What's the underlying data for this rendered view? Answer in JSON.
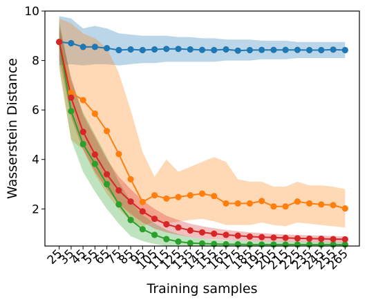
{
  "chart_data": {
    "type": "line",
    "xlabel": "Training samples",
    "ylabel": "Wasserstein Distance",
    "ylim": [
      0.5,
      10
    ],
    "y_ticks": [
      2,
      4,
      6,
      8,
      10
    ],
    "x": [
      25,
      35,
      45,
      55,
      65,
      75,
      85,
      95,
      105,
      115,
      125,
      135,
      145,
      155,
      165,
      175,
      185,
      195,
      205,
      215,
      225,
      235,
      245,
      255,
      265
    ],
    "grid": false,
    "legend": "none",
    "series": [
      {
        "color": "#1f77b4",
        "band_color": "#1f77b4",
        "values": [
          8.75,
          8.7,
          8.55,
          8.55,
          8.5,
          8.42,
          8.45,
          8.42,
          8.45,
          8.47,
          8.47,
          8.45,
          8.43,
          8.42,
          8.45,
          8.4,
          8.42,
          8.43,
          8.43,
          8.43,
          8.43,
          8.42,
          8.42,
          8.44,
          8.42
        ],
        "upper": [
          9.8,
          9.7,
          9.3,
          9.4,
          9.3,
          9.1,
          9.05,
          9.0,
          9.0,
          9.0,
          8.95,
          8.95,
          8.9,
          8.9,
          8.85,
          8.85,
          8.85,
          8.8,
          8.8,
          8.8,
          8.75,
          8.75,
          8.75,
          8.75,
          8.75
        ],
        "lower": [
          7.8,
          7.85,
          7.8,
          7.85,
          7.85,
          7.8,
          7.85,
          7.9,
          7.9,
          7.95,
          7.95,
          7.95,
          7.95,
          7.95,
          8.0,
          8.0,
          8.0,
          8.05,
          8.05,
          8.05,
          8.1,
          8.1,
          8.1,
          8.1,
          8.1
        ]
      },
      {
        "color": "#ff7f0e",
        "band_color": "#ff7f0e",
        "values": [
          8.75,
          6.7,
          6.4,
          5.85,
          5.15,
          4.22,
          3.2,
          2.28,
          2.55,
          2.42,
          2.48,
          2.55,
          2.62,
          2.52,
          2.22,
          2.22,
          2.22,
          2.32,
          2.1,
          2.1,
          2.3,
          2.22,
          2.18,
          2.15,
          2.02
        ],
        "upper": [
          9.7,
          9.5,
          9.1,
          8.9,
          8.5,
          7.5,
          6.0,
          4.3,
          3.3,
          4.0,
          3.5,
          3.7,
          3.9,
          4.1,
          3.9,
          3.2,
          3.1,
          3.1,
          2.9,
          2.9,
          3.1,
          2.95,
          2.95,
          2.9,
          2.8
        ],
        "lower": [
          7.6,
          4.8,
          4.4,
          3.4,
          2.6,
          2.0,
          1.5,
          1.3,
          1.5,
          1.4,
          1.5,
          1.55,
          1.6,
          1.5,
          1.35,
          1.35,
          1.35,
          1.45,
          1.35,
          1.3,
          1.45,
          1.4,
          1.35,
          1.3,
          1.25
        ]
      },
      {
        "color": "#2ca02c",
        "band_color": "#2ca02c",
        "values": [
          8.75,
          5.95,
          4.62,
          3.82,
          3.0,
          2.18,
          1.55,
          1.18,
          0.95,
          0.78,
          0.68,
          0.62,
          0.6,
          0.58,
          0.57,
          0.57,
          0.56,
          0.56,
          0.56,
          0.56,
          0.56,
          0.56,
          0.56,
          0.56,
          0.56
        ],
        "upper": [
          9.6,
          7.2,
          5.9,
          5.0,
          4.1,
          3.1,
          2.3,
          1.75,
          1.42,
          1.15,
          0.98,
          0.86,
          0.8,
          0.76,
          0.73,
          0.72,
          0.7,
          0.69,
          0.68,
          0.68,
          0.67,
          0.67,
          0.66,
          0.66,
          0.66
        ],
        "lower": [
          7.8,
          4.8,
          3.5,
          2.7,
          2.0,
          1.4,
          0.9,
          0.7,
          0.58,
          0.5,
          0.47,
          0.45,
          0.45,
          0.45,
          0.45,
          0.45,
          0.45,
          0.45,
          0.45,
          0.45,
          0.45,
          0.45,
          0.45,
          0.45,
          0.45
        ]
      },
      {
        "color": "#d62728",
        "band_color": "#d62728",
        "values": [
          8.75,
          6.5,
          5.12,
          4.2,
          3.4,
          2.75,
          2.3,
          1.9,
          1.6,
          1.38,
          1.25,
          1.13,
          1.05,
          1.0,
          0.95,
          0.92,
          0.88,
          0.86,
          0.84,
          0.83,
          0.81,
          0.8,
          0.79,
          0.78,
          0.77
        ],
        "upper": [
          9.4,
          7.3,
          5.8,
          4.9,
          4.0,
          3.3,
          2.8,
          2.35,
          2.0,
          1.72,
          1.55,
          1.4,
          1.3,
          1.22,
          1.15,
          1.1,
          1.05,
          1.02,
          0.99,
          0.97,
          0.95,
          0.93,
          0.92,
          0.9,
          0.89
        ],
        "lower": [
          8.1,
          5.7,
          4.4,
          3.5,
          2.8,
          2.2,
          1.8,
          1.45,
          1.2,
          1.05,
          0.95,
          0.86,
          0.8,
          0.77,
          0.74,
          0.72,
          0.7,
          0.69,
          0.68,
          0.67,
          0.66,
          0.66,
          0.65,
          0.65,
          0.64
        ]
      }
    ]
  }
}
